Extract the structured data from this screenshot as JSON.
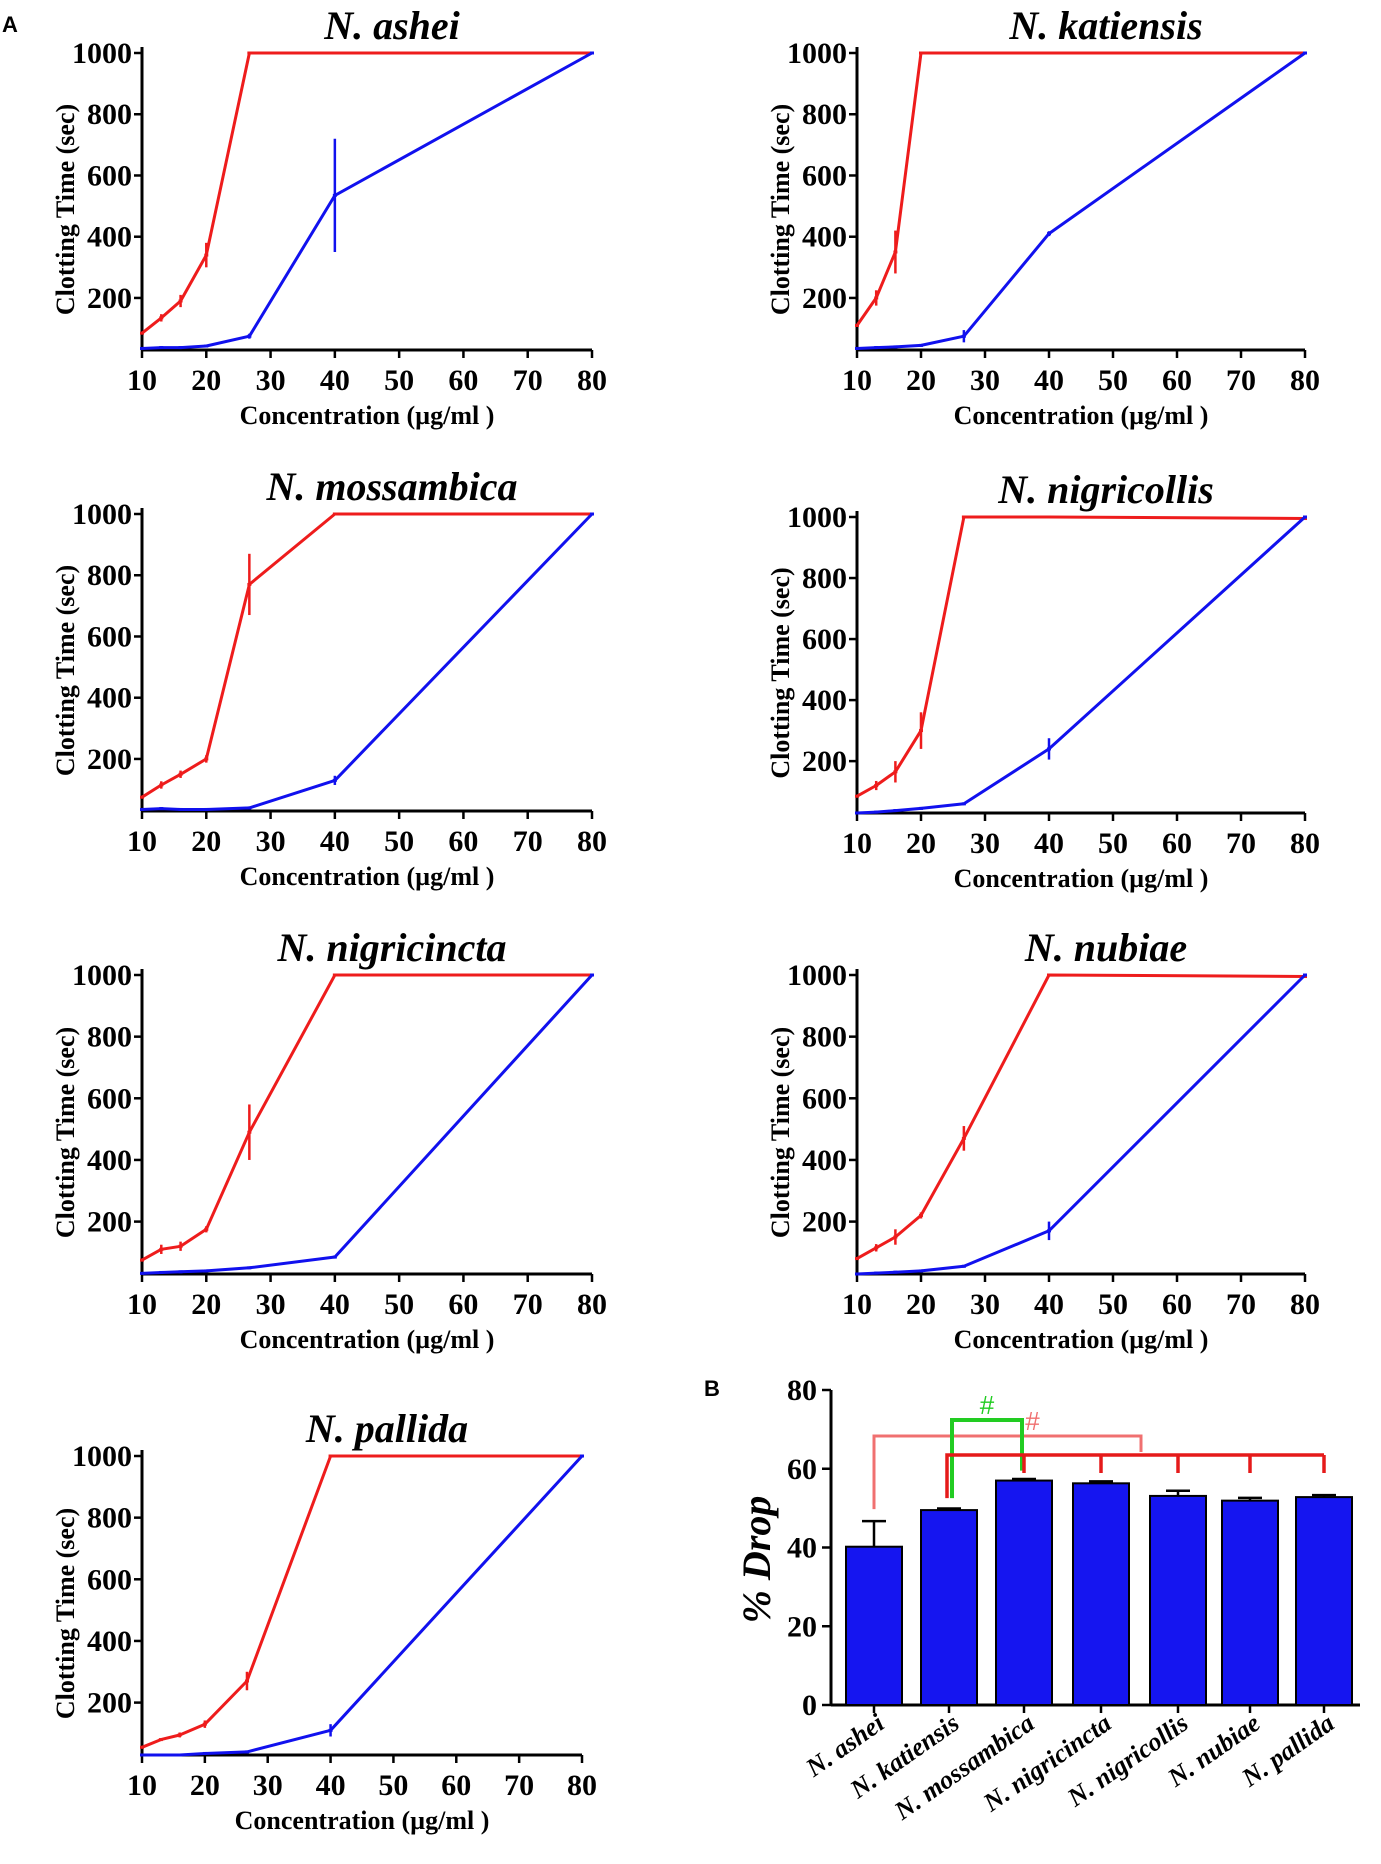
{
  "panel_letters": {
    "a": "A",
    "b": "B"
  },
  "colors": {
    "red_series": "#ee1c1c",
    "blue_series": "#1111ee",
    "bar_fill": "#1515f0",
    "axis": "#000000",
    "sig_green": "#22cc22",
    "sig_light_red": "#f07070",
    "sig_red": "#e51a1a"
  },
  "chart_data": [
    {
      "type": "line",
      "title": "N. ashei",
      "xlabel": "Concentration (µg/ml )",
      "ylabel": "Clotting Time (sec)",
      "xlim": [
        10,
        80
      ],
      "ylim": [
        30,
        1000
      ],
      "xticks": [
        "10",
        "20",
        "30",
        "40",
        "50",
        "60",
        "70",
        "80"
      ],
      "yticks": [
        "200",
        "400",
        "600",
        "800",
        "1000"
      ],
      "series": [
        {
          "name": "red",
          "color": "#ee1c1c",
          "x": [
            10,
            13,
            16,
            20,
            26.7,
            40,
            80
          ],
          "y": [
            85,
            135,
            190,
            340,
            1000,
            1000,
            1000
          ],
          "err": [
            0,
            12,
            20,
            40,
            0,
            0,
            0
          ]
        },
        {
          "name": "blue",
          "color": "#1111ee",
          "x": [
            10,
            13,
            16,
            20,
            26.7,
            40,
            80
          ],
          "y": [
            35,
            38,
            38,
            43,
            75,
            535,
            1000
          ],
          "err": [
            0,
            0,
            3,
            3,
            8,
            185,
            0
          ]
        }
      ]
    },
    {
      "type": "line",
      "title": "N. katiensis",
      "xlabel": "Concentration (µg/ml )",
      "ylabel": "Clotting Time (sec)",
      "xlim": [
        10,
        80
      ],
      "ylim": [
        30,
        1000
      ],
      "xticks": [
        "10",
        "20",
        "30",
        "40",
        "50",
        "60",
        "70",
        "80"
      ],
      "yticks": [
        "200",
        "400",
        "600",
        "800",
        "1000"
      ],
      "series": [
        {
          "name": "red",
          "color": "#ee1c1c",
          "x": [
            10,
            13,
            16,
            20,
            40,
            80
          ],
          "y": [
            110,
            200,
            350,
            1000,
            1000,
            1000
          ],
          "err": [
            0,
            25,
            70,
            0,
            0,
            0
          ]
        },
        {
          "name": "blue",
          "color": "#1111ee",
          "x": [
            10,
            13,
            16,
            20,
            26.7,
            40,
            80
          ],
          "y": [
            35,
            38,
            40,
            45,
            75,
            410,
            1000
          ],
          "err": [
            0,
            0,
            0,
            3,
            20,
            8,
            0
          ]
        }
      ]
    },
    {
      "type": "line",
      "title": "N. mossambica",
      "xlabel": "Concentration (µg/ml )",
      "ylabel": "Clotting Time (sec)",
      "xlim": [
        10,
        80
      ],
      "ylim": [
        30,
        1000
      ],
      "xticks": [
        "10",
        "20",
        "30",
        "40",
        "50",
        "60",
        "70",
        "80"
      ],
      "yticks": [
        "200",
        "400",
        "600",
        "800",
        "1000"
      ],
      "series": [
        {
          "name": "red",
          "color": "#ee1c1c",
          "x": [
            10,
            13,
            16,
            20,
            26.7,
            40,
            80
          ],
          "y": [
            75,
            115,
            150,
            200,
            770,
            1000,
            1000
          ],
          "err": [
            0,
            12,
            12,
            12,
            100,
            0,
            0
          ]
        },
        {
          "name": "blue",
          "color": "#1111ee",
          "x": [
            10,
            13,
            16,
            20,
            26.7,
            40,
            80
          ],
          "y": [
            35,
            38,
            35,
            35,
            40,
            130,
            1000
          ],
          "err": [
            0,
            0,
            0,
            0,
            5,
            15,
            0
          ]
        }
      ]
    },
    {
      "type": "line",
      "title": "N. nigricollis",
      "xlabel": "Concentration (µg/ml )",
      "ylabel": "Clotting Time (sec)",
      "xlim": [
        10,
        80
      ],
      "ylim": [
        30,
        1000
      ],
      "xticks": [
        "10",
        "20",
        "30",
        "40",
        "50",
        "60",
        "70",
        "80"
      ],
      "yticks": [
        "200",
        "400",
        "600",
        "800",
        "1000"
      ],
      "series": [
        {
          "name": "red",
          "color": "#ee1c1c",
          "x": [
            10,
            13,
            16,
            20,
            26.7,
            40,
            80
          ],
          "y": [
            85,
            120,
            165,
            300,
            1000,
            1000,
            995
          ],
          "err": [
            0,
            15,
            35,
            60,
            0,
            0,
            0
          ]
        },
        {
          "name": "blue",
          "color": "#1111ee",
          "x": [
            10,
            13,
            16,
            20,
            26.7,
            40,
            80
          ],
          "y": [
            30,
            33,
            38,
            45,
            60,
            240,
            1000
          ],
          "err": [
            0,
            0,
            0,
            0,
            0,
            35,
            0
          ]
        }
      ]
    },
    {
      "type": "line",
      "title": "N. nigricincta",
      "xlabel": "Concentration (µg/ml )",
      "ylabel": "Clotting Time (sec)",
      "xlim": [
        10,
        80
      ],
      "ylim": [
        30,
        1000
      ],
      "xticks": [
        "10",
        "20",
        "30",
        "40",
        "50",
        "60",
        "70",
        "80"
      ],
      "yticks": [
        "200",
        "400",
        "600",
        "800",
        "1000"
      ],
      "series": [
        {
          "name": "red",
          "color": "#ee1c1c",
          "x": [
            10,
            13,
            16,
            20,
            26.7,
            40,
            80
          ],
          "y": [
            75,
            110,
            120,
            175,
            490,
            1000,
            1000
          ],
          "err": [
            0,
            15,
            15,
            10,
            90,
            0,
            0
          ]
        },
        {
          "name": "blue",
          "color": "#1111ee",
          "x": [
            10,
            13,
            16,
            20,
            26.7,
            40,
            80
          ],
          "y": [
            32,
            35,
            37,
            40,
            50,
            85,
            1000
          ],
          "err": [
            0,
            0,
            0,
            0,
            0,
            5,
            0
          ]
        }
      ]
    },
    {
      "type": "line",
      "title": "N. nubiae",
      "xlabel": "Concentration (µg/ml )",
      "ylabel": "Clotting Time (sec)",
      "xlim": [
        10,
        80
      ],
      "ylim": [
        30,
        1000
      ],
      "xticks": [
        "10",
        "20",
        "30",
        "40",
        "50",
        "60",
        "70",
        "80"
      ],
      "yticks": [
        "200",
        "400",
        "600",
        "800",
        "1000"
      ],
      "series": [
        {
          "name": "red",
          "color": "#ee1c1c",
          "x": [
            10,
            13,
            16,
            20,
            26.7,
            40,
            80
          ],
          "y": [
            80,
            115,
            150,
            220,
            470,
            1000,
            995
          ],
          "err": [
            0,
            12,
            25,
            10,
            40,
            0,
            0
          ]
        },
        {
          "name": "blue",
          "color": "#1111ee",
          "x": [
            10,
            13,
            16,
            20,
            26.7,
            40,
            80
          ],
          "y": [
            30,
            33,
            36,
            40,
            55,
            170,
            1000
          ],
          "err": [
            0,
            0,
            0,
            0,
            0,
            30,
            0
          ]
        }
      ]
    },
    {
      "type": "line",
      "title": "N. pallida",
      "xlabel": "Concentration (µg/ml )",
      "ylabel": "Clotting Time (sec)",
      "xlim": [
        10,
        80
      ],
      "ylim": [
        30,
        1000
      ],
      "xticks": [
        "10",
        "20",
        "30",
        "40",
        "50",
        "60",
        "70",
        "80"
      ],
      "yticks": [
        "200",
        "400",
        "600",
        "800",
        "1000"
      ],
      "series": [
        {
          "name": "red",
          "color": "#ee1c1c",
          "x": [
            10,
            13,
            16,
            20,
            26.7,
            40,
            80
          ],
          "y": [
            55,
            80,
            95,
            130,
            270,
            1000,
            1000
          ],
          "err": [
            0,
            0,
            8,
            12,
            30,
            0,
            0
          ]
        },
        {
          "name": "blue",
          "color": "#1111ee",
          "x": [
            10,
            13,
            16,
            20,
            26.7,
            40,
            80
          ],
          "y": [
            30,
            30,
            30,
            35,
            40,
            110,
            1000
          ],
          "err": [
            0,
            0,
            0,
            0,
            3,
            20,
            0
          ]
        }
      ]
    },
    {
      "type": "bar",
      "title": "",
      "ylabel": "% Drop",
      "ylim": [
        0,
        80
      ],
      "yticks": [
        "0",
        "20",
        "40",
        "60",
        "80"
      ],
      "categories": [
        "N. ashei",
        "N. katiensis",
        "N. mossambica",
        "N. nigricincta",
        "N. nigricollis",
        "N. nubiae",
        "N. pallida"
      ],
      "values": [
        40.2,
        49.5,
        57.0,
        56.3,
        53.1,
        51.9,
        52.8
      ],
      "errors": [
        6.5,
        0.4,
        0.4,
        0.5,
        1.3,
        0.7,
        0.5
      ],
      "annotations": [
        {
          "type": "bracket",
          "color": "#f07070",
          "from": 0,
          "to": 3,
          "label": "#"
        },
        {
          "type": "bracket",
          "color": "#22cc22",
          "from": 1,
          "to": 2,
          "label": "#"
        },
        {
          "type": "bracket-multi",
          "color": "#e51a1a",
          "from": 1,
          "to": [
            2,
            3,
            4,
            5,
            6
          ],
          "label": ""
        }
      ]
    }
  ]
}
